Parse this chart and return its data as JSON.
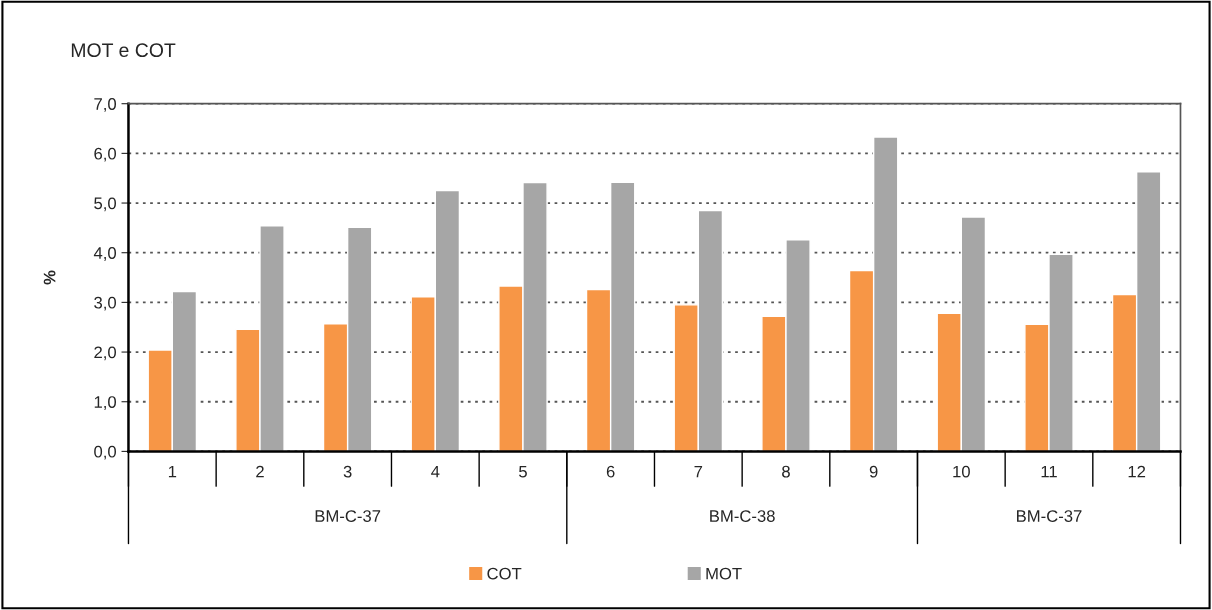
{
  "chart_data": {
    "type": "bar",
    "title": "MOT e COT",
    "ylabel": "%",
    "categories": [
      "1",
      "2",
      "3",
      "4",
      "5",
      "6",
      "7",
      "8",
      "9",
      "10",
      "11",
      "12"
    ],
    "series": [
      {
        "name": "COT",
        "color": "#f79646",
        "values": [
          2.04,
          2.46,
          2.57,
          3.11,
          3.33,
          3.26,
          2.95,
          2.72,
          3.64,
          2.78,
          2.56,
          3.16
        ]
      },
      {
        "name": "MOT",
        "color": "#a6a6a6",
        "values": [
          3.22,
          4.54,
          4.51,
          5.25,
          5.41,
          5.42,
          4.85,
          4.26,
          6.33,
          4.72,
          3.97,
          5.63
        ]
      }
    ],
    "ylim": [
      0,
      7
    ],
    "yticks": [
      {
        "value": 0,
        "label": "0,0"
      },
      {
        "value": 1,
        "label": "1,0"
      },
      {
        "value": 2,
        "label": "2,0"
      },
      {
        "value": 3,
        "label": "3,0"
      },
      {
        "value": 4,
        "label": "4,0"
      },
      {
        "value": 5,
        "label": "5,0"
      },
      {
        "value": 6,
        "label": "6,0"
      },
      {
        "value": 7,
        "label": "7,0"
      }
    ],
    "annotations": [
      "BM-C-37",
      "BM-C-38",
      "BM-C-37"
    ],
    "grid": "y",
    "legend": "bottom"
  }
}
